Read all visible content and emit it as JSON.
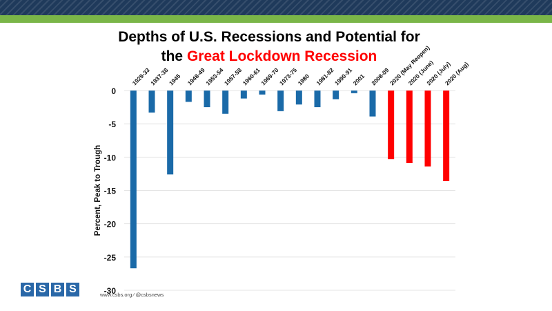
{
  "header": {
    "band_color": "#1f3a5b",
    "accent_color": "#7ab648"
  },
  "title": {
    "line1": "Depths of U.S. Recessions and Potential for",
    "line2_prefix": "the ",
    "line2_highlight": "Great Lockdown Recession"
  },
  "footer": {
    "logo_letters": [
      "C",
      "S",
      "B",
      "S"
    ],
    "text": "www.csbs.org  ⁄  @csbsnews"
  },
  "chart_data": {
    "type": "bar",
    "categories": [
      "1929-33",
      "1937-38",
      "1945",
      "1948-49",
      "1953-54",
      "1957-58",
      "1960-61",
      "1969-70",
      "1973-75",
      "1980",
      "1981-82",
      "1990-91",
      "2001",
      "2008-09",
      "2020  (May Reopen)",
      "2020  (June)",
      "2020  (July)",
      "2020  (Aug)"
    ],
    "values": [
      -26.7,
      -3.3,
      -12.6,
      -1.7,
      -2.5,
      -3.5,
      -1.2,
      -0.6,
      -3.1,
      -2.1,
      -2.5,
      -1.3,
      -0.4,
      -3.9,
      -10.3,
      -10.9,
      -11.4,
      -13.6
    ],
    "colors": [
      "#1a6aa8",
      "#1a6aa8",
      "#1a6aa8",
      "#1a6aa8",
      "#1a6aa8",
      "#1a6aa8",
      "#1a6aa8",
      "#1a6aa8",
      "#1a6aa8",
      "#1a6aa8",
      "#1a6aa8",
      "#1a6aa8",
      "#1a6aa8",
      "#1a6aa8",
      "#ff0000",
      "#ff0000",
      "#ff0000",
      "#ff0000"
    ],
    "ylabel": "Percent, Peak to Trough",
    "xlabel": "",
    "ylim": [
      -30,
      0
    ],
    "yticks": [
      0,
      -5,
      -10,
      -15,
      -20,
      -25,
      -30
    ],
    "ytick_labels": [
      "0",
      "-5",
      "-10",
      "-15",
      "-20",
      "-25",
      "-30"
    ],
    "grid": true,
    "category_axis_position": "top"
  }
}
